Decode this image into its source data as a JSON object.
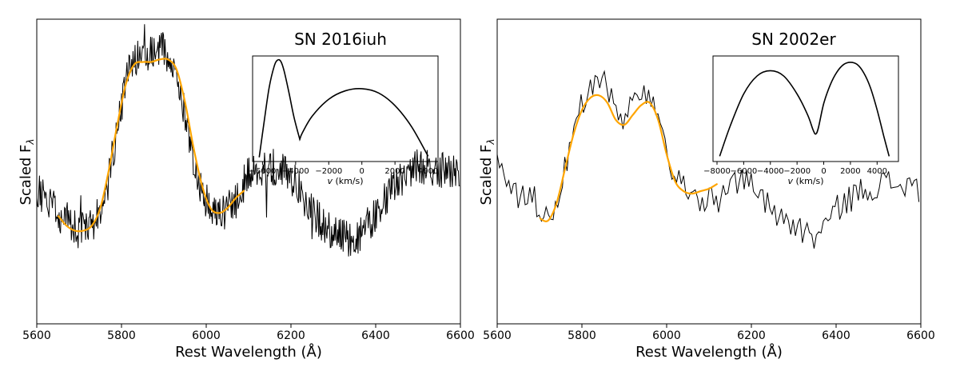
{
  "chart_data": [
    {
      "type": "line",
      "title": "SN 2016iuh",
      "xlabel": "Rest Wavelength (Å)",
      "ylabel": "Scaled F_λ",
      "ylabel_main": "Scaled F",
      "ylabel_sub": "λ",
      "xlim": [
        5600,
        6600
      ],
      "ylim": [
        0,
        1
      ],
      "xticks": [
        "5600",
        "5800",
        "6000",
        "6200",
        "6400",
        "6600"
      ],
      "y_tick_labels_visible": false,
      "spectrum_resolution": "high",
      "spectrum_anchors": {
        "x": [
          5600,
          5650,
          5700,
          5730,
          5760,
          5780,
          5800,
          5820,
          5840,
          5880,
          5900,
          5920,
          5950,
          5980,
          6000,
          6020,
          6050,
          6080,
          6100,
          6120,
          6150,
          6180,
          6200,
          6250,
          6300,
          6350,
          6400,
          6450,
          6500,
          6550,
          6600
        ],
        "y": [
          0.37,
          0.28,
          0.21,
          0.22,
          0.32,
          0.52,
          0.7,
          0.87,
          0.9,
          0.92,
          0.93,
          0.88,
          0.67,
          0.42,
          0.32,
          0.29,
          0.29,
          0.35,
          0.45,
          0.46,
          0.47,
          0.45,
          0.43,
          0.28,
          0.2,
          0.17,
          0.27,
          0.4,
          0.47,
          0.45,
          0.43
        ]
      },
      "fit_color": "#FFA500",
      "fit": {
        "x": [
          5650,
          5670,
          5690,
          5710,
          5730,
          5750,
          5770,
          5790,
          5810,
          5830,
          5850,
          5870,
          5890,
          5910,
          5930,
          5950,
          5970,
          5990,
          6010,
          6030,
          6050,
          6070,
          6090
        ],
        "y": [
          0.27,
          0.23,
          0.21,
          0.21,
          0.23,
          0.3,
          0.45,
          0.63,
          0.79,
          0.87,
          0.88,
          0.88,
          0.89,
          0.89,
          0.85,
          0.72,
          0.54,
          0.39,
          0.3,
          0.28,
          0.3,
          0.34,
          0.37
        ]
      },
      "inset": {
        "xlabel_main": "v",
        "xlabel_units": "(km/s)",
        "xlim": [
          -6600,
          4600
        ],
        "xticks": [
          -6000,
          -4000,
          -2000,
          0,
          2000,
          4000
        ],
        "xtick_labels": [
          "−6000",
          "−4000",
          "−2000",
          "0",
          "2000",
          "4000"
        ],
        "curve": {
          "x": [
            -6200,
            -5900,
            -5600,
            -5300,
            -5100,
            -4900,
            -4700,
            -4400,
            -4100,
            -3750,
            -3600,
            -3000,
            -2000,
            -1000,
            0,
            1000,
            2000,
            3000,
            4000
          ],
          "y": [
            0.04,
            0.38,
            0.7,
            0.9,
            0.96,
            0.95,
            0.86,
            0.65,
            0.42,
            0.21,
            0.27,
            0.43,
            0.59,
            0.67,
            0.69,
            0.65,
            0.53,
            0.33,
            0.05
          ]
        }
      }
    },
    {
      "type": "line",
      "title": "SN 2002er",
      "xlabel": "Rest Wavelength (Å)",
      "ylabel": "Scaled F_λ",
      "ylabel_main": "Scaled F",
      "ylabel_sub": "λ",
      "xlim": [
        5600,
        6600
      ],
      "ylim": [
        0,
        1
      ],
      "xticks": [
        "5600",
        "5800",
        "6000",
        "6200",
        "6400",
        "6600"
      ],
      "y_tick_labels_visible": false,
      "spectrum_resolution": "low",
      "spectrum_anchors": {
        "x": [
          5600,
          5640,
          5680,
          5700,
          5730,
          5760,
          5790,
          5820,
          5840,
          5860,
          5880,
          5900,
          5920,
          5950,
          5970,
          6000,
          6020,
          6040,
          6080,
          6120,
          6150,
          6200,
          6250,
          6300,
          6350,
          6380,
          6420,
          6460,
          6500,
          6550,
          6600
        ],
        "y": [
          0.5,
          0.33,
          0.36,
          0.24,
          0.26,
          0.44,
          0.67,
          0.75,
          0.8,
          0.77,
          0.68,
          0.62,
          0.72,
          0.74,
          0.68,
          0.48,
          0.39,
          0.36,
          0.32,
          0.3,
          0.4,
          0.38,
          0.28,
          0.21,
          0.16,
          0.23,
          0.31,
          0.35,
          0.38,
          0.38,
          0.36
        ]
      },
      "fit_color": "#FFA500",
      "fit": {
        "x": [
          5700,
          5720,
          5740,
          5760,
          5780,
          5800,
          5820,
          5840,
          5860,
          5880,
          5900,
          5920,
          5940,
          5960,
          5980,
          6000,
          6020,
          6040,
          6060,
          6080,
          6100,
          6120
        ],
        "y": [
          0.24,
          0.23,
          0.3,
          0.44,
          0.58,
          0.68,
          0.73,
          0.74,
          0.71,
          0.64,
          0.62,
          0.66,
          0.7,
          0.71,
          0.64,
          0.5,
          0.39,
          0.35,
          0.34,
          0.35,
          0.36,
          0.38
        ]
      },
      "inset": {
        "xlabel_main": "v",
        "xlabel_units": "(km/s)",
        "xlim": [
          -8300,
          5600
        ],
        "xticks": [
          -8000,
          -6000,
          -4000,
          -2000,
          0,
          2000,
          4000
        ],
        "xtick_labels": [
          "−8000",
          "−6000",
          "−4000",
          "−2000",
          "0",
          "2000",
          "4000"
        ],
        "curve": {
          "x": [
            -7800,
            -7000,
            -6000,
            -5000,
            -4000,
            -3000,
            -2000,
            -1200,
            -800,
            -600,
            -400,
            0,
            500,
            1000,
            1500,
            2000,
            2500,
            3000,
            3500,
            4000,
            4500,
            4900
          ],
          "y": [
            0.05,
            0.34,
            0.64,
            0.81,
            0.86,
            0.81,
            0.64,
            0.44,
            0.3,
            0.26,
            0.32,
            0.55,
            0.73,
            0.85,
            0.92,
            0.94,
            0.92,
            0.84,
            0.7,
            0.49,
            0.24,
            0.05
          ]
        }
      }
    }
  ]
}
